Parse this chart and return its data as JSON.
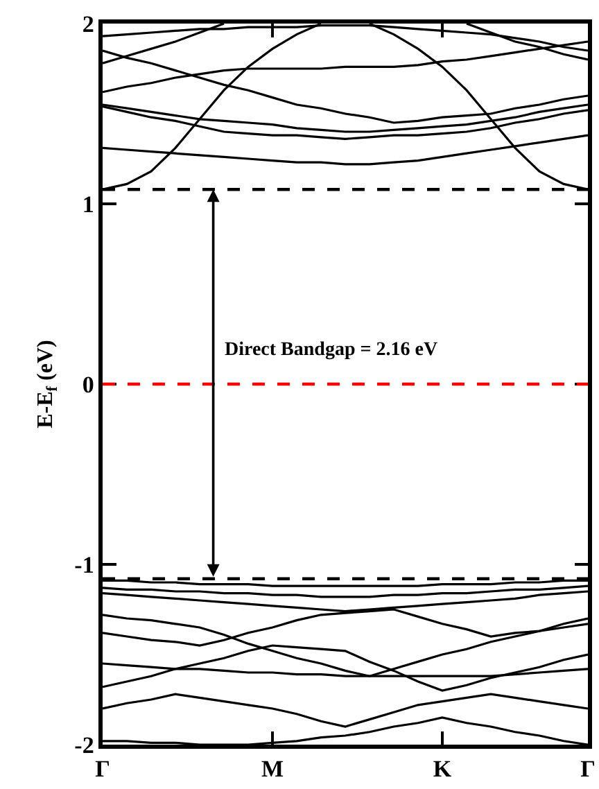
{
  "chart_data": {
    "type": "line",
    "ylabel": "E-E$_{f}$ (eV)",
    "categories": [
      "Γ",
      null,
      null,
      null,
      null,
      null,
      null,
      "M",
      null,
      null,
      null,
      null,
      null,
      null,
      "K",
      null,
      null,
      null,
      null,
      null,
      "Γ"
    ],
    "ylim": [
      -2,
      2
    ],
    "yticks": [
      -2,
      -1,
      0,
      1,
      2
    ],
    "legend": false,
    "marker": "none",
    "series": [
      {
        "color": "#000000",
        "values": [
          1.08,
          1.11,
          1.18,
          1.31,
          1.47,
          1.63,
          1.76,
          1.86,
          1.94,
          2.0,
          null,
          null,
          null,
          null,
          null,
          null,
          null,
          null,
          null,
          null,
          null
        ]
      },
      {
        "color": "#000000",
        "values": [
          null,
          null,
          null,
          null,
          null,
          null,
          null,
          null,
          null,
          null,
          null,
          2.0,
          1.94,
          1.86,
          1.76,
          1.63,
          1.47,
          1.31,
          1.18,
          1.11,
          1.08
        ]
      },
      {
        "color": "#000000",
        "values": [
          1.31,
          1.3,
          1.29,
          1.28,
          1.27,
          1.26,
          1.25,
          1.24,
          1.23,
          1.23,
          1.22,
          1.22,
          1.23,
          1.24,
          1.26,
          1.28,
          1.3,
          1.32,
          1.34,
          1.36,
          1.38
        ]
      },
      {
        "color": "#000000",
        "values": [
          1.55,
          1.53,
          1.51,
          1.49,
          1.47,
          1.46,
          1.45,
          1.44,
          1.42,
          1.41,
          1.4,
          1.4,
          1.41,
          1.42,
          1.43,
          1.44,
          1.46,
          1.48,
          1.51,
          1.53,
          1.55
        ]
      },
      {
        "color": "#000000",
        "values": [
          1.54,
          1.51,
          1.48,
          1.46,
          1.43,
          1.4,
          1.39,
          1.38,
          1.38,
          1.37,
          1.36,
          1.37,
          1.38,
          1.38,
          1.39,
          1.4,
          1.42,
          1.45,
          1.47,
          1.5,
          1.52
        ]
      },
      {
        "color": "#000000",
        "values": [
          1.62,
          1.65,
          1.67,
          1.7,
          1.72,
          1.74,
          1.75,
          1.75,
          1.75,
          1.75,
          1.76,
          1.76,
          1.76,
          1.77,
          1.79,
          1.8,
          1.82,
          1.84,
          1.86,
          1.88,
          1.9
        ]
      },
      {
        "color": "#000000",
        "values": [
          1.93,
          1.94,
          1.95,
          1.96,
          1.97,
          1.97,
          1.98,
          1.98,
          1.98,
          1.99,
          1.99,
          1.99,
          1.98,
          1.97,
          1.96,
          1.95,
          1.94,
          1.92,
          1.9,
          1.87,
          1.85
        ]
      },
      {
        "color": "#000000",
        "values": [
          1.85,
          1.81,
          1.78,
          1.74,
          1.7,
          1.66,
          1.63,
          1.59,
          1.55,
          1.53,
          1.5,
          1.48,
          1.45,
          1.46,
          1.48,
          1.49,
          1.5,
          1.53,
          1.55,
          1.58,
          1.6
        ]
      },
      {
        "color": "#000000",
        "values": [
          1.78,
          1.82,
          1.86,
          1.9,
          1.95,
          2.0,
          null,
          null,
          null,
          null,
          null,
          null,
          null,
          null,
          null,
          null,
          null,
          null,
          null,
          null,
          null
        ]
      },
      {
        "color": "#000000",
        "values": [
          null,
          null,
          null,
          null,
          null,
          null,
          null,
          null,
          null,
          null,
          null,
          null,
          null,
          null,
          null,
          2.0,
          1.95,
          1.9,
          1.87,
          1.83,
          1.8
        ]
      },
      {
        "color": "#000000",
        "values": [
          -1.09,
          -1.09,
          -1.1,
          -1.1,
          -1.11,
          -1.11,
          -1.11,
          -1.12,
          -1.12,
          -1.12,
          -1.12,
          -1.12,
          -1.12,
          -1.12,
          -1.11,
          -1.11,
          -1.11,
          -1.1,
          -1.1,
          -1.09,
          -1.09
        ]
      },
      {
        "color": "#000000",
        "values": [
          -1.13,
          -1.14,
          -1.14,
          -1.15,
          -1.15,
          -1.16,
          -1.16,
          -1.17,
          -1.17,
          -1.18,
          -1.18,
          -1.18,
          -1.17,
          -1.17,
          -1.16,
          -1.16,
          -1.15,
          -1.14,
          -1.14,
          -1.13,
          -1.12
        ]
      },
      {
        "color": "#000000",
        "values": [
          -1.16,
          -1.17,
          -1.18,
          -1.19,
          -1.2,
          -1.21,
          -1.22,
          -1.23,
          -1.24,
          -1.25,
          -1.26,
          -1.25,
          -1.24,
          -1.23,
          -1.22,
          -1.21,
          -1.2,
          -1.19,
          -1.17,
          -1.16,
          -1.15
        ]
      },
      {
        "color": "#000000",
        "values": [
          -1.55,
          -1.56,
          -1.57,
          -1.58,
          -1.58,
          -1.59,
          -1.6,
          -1.6,
          -1.61,
          -1.61,
          -1.62,
          -1.62,
          -1.62,
          -1.62,
          -1.62,
          -1.62,
          -1.62,
          -1.61,
          -1.6,
          -1.59,
          -1.58
        ]
      },
      {
        "color": "#000000",
        "values": [
          -1.38,
          -1.4,
          -1.42,
          -1.43,
          -1.45,
          -1.42,
          -1.38,
          -1.35,
          -1.31,
          -1.28,
          -1.27,
          -1.26,
          -1.25,
          -1.29,
          -1.33,
          -1.36,
          -1.4,
          -1.38,
          -1.37,
          -1.35,
          -1.33
        ]
      },
      {
        "color": "#000000",
        "values": [
          -1.28,
          -1.3,
          -1.31,
          -1.33,
          -1.35,
          -1.39,
          -1.44,
          -1.48,
          -1.52,
          -1.55,
          -1.59,
          -1.62,
          -1.58,
          -1.54,
          -1.5,
          -1.47,
          -1.43,
          -1.4,
          -1.37,
          -1.33,
          -1.3
        ]
      },
      {
        "color": "#000000",
        "values": [
          -1.68,
          -1.65,
          -1.62,
          -1.58,
          -1.55,
          -1.52,
          -1.48,
          -1.45,
          -1.46,
          -1.47,
          -1.48,
          -1.54,
          -1.59,
          -1.65,
          -1.7,
          -1.67,
          -1.63,
          -1.6,
          -1.57,
          -1.53,
          -1.5
        ]
      },
      {
        "color": "#000000",
        "values": [
          -1.8,
          -1.77,
          -1.75,
          -1.72,
          -1.74,
          -1.76,
          -1.78,
          -1.8,
          -1.83,
          -1.87,
          -1.9,
          -1.86,
          -1.82,
          -1.78,
          -1.76,
          -1.74,
          -1.72,
          -1.74,
          -1.76,
          -1.78,
          -1.8
        ]
      },
      {
        "color": "#000000",
        "values": [
          -1.98,
          -1.98,
          -1.99,
          -1.99,
          -2.0,
          -2.0,
          -2.0,
          -1.99,
          -1.98,
          -1.96,
          -1.95,
          -1.93,
          -1.9,
          -1.88,
          -1.85,
          -1.88,
          -1.9,
          -1.93,
          -1.95,
          -1.98,
          -2.0
        ]
      }
    ],
    "ref_lines": [
      {
        "axis": "y",
        "value": 1.08,
        "color": "#000000",
        "line_style": "dashed"
      },
      {
        "axis": "y",
        "value": 0,
        "color": "#ff0000",
        "line_style": "dashed"
      },
      {
        "axis": "y",
        "value": -1.08,
        "color": "#000000",
        "line_style": "dashed"
      }
    ],
    "annotations": [
      "Direct Bandgap = 2.16 eV"
    ]
  }
}
